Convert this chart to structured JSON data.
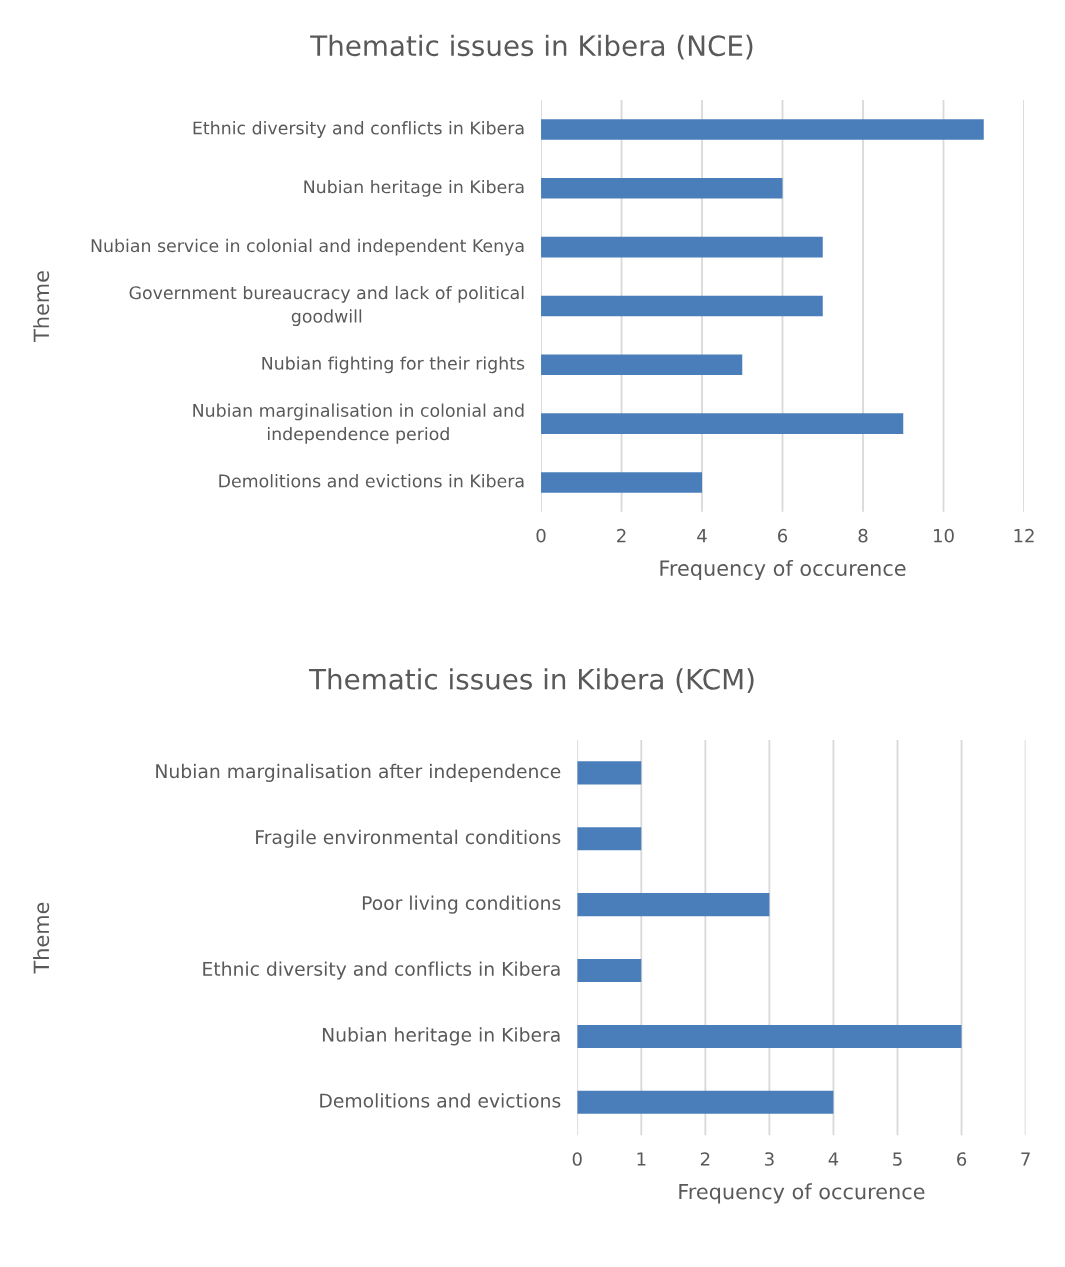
{
  "chart_data": [
    {
      "type": "bar",
      "orientation": "horizontal",
      "title": "Thematic issues in Kibera (NCE)",
      "xlabel": "Frequency of occurence",
      "ylabel": "Theme",
      "categories": [
        "Ethnic diversity and conflicts in Kibera",
        "Nubian heritage in Kibera",
        "Nubian service in colonial and independent Kenya",
        "Government bureaucracy and lack of political goodwill",
        "Nubian fighting for their rights",
        "Nubian marginalisation in colonial and independence period",
        "Demolitions and evictions in Kibera"
      ],
      "values": [
        11,
        6,
        7,
        7,
        5,
        9,
        4
      ],
      "color": "#4a7ebb",
      "xlim": [
        0,
        12
      ],
      "xticks": [
        0,
        2,
        4,
        6,
        8,
        10,
        12
      ],
      "grid": "x",
      "legend": false
    },
    {
      "type": "bar",
      "orientation": "horizontal",
      "title": "Thematic issues in Kibera (KCM)",
      "xlabel": "Frequency of occurence",
      "ylabel": "Theme",
      "categories": [
        "Nubian marginalisation after independence",
        "Fragile environmental conditions",
        "Poor living conditions",
        "Ethnic diversity and conflicts in Kibera",
        "Nubian heritage in Kibera",
        "Demolitions and evictions"
      ],
      "values": [
        1,
        1,
        3,
        1,
        6,
        4
      ],
      "color": "#4a7ebb",
      "xlim": [
        0,
        7
      ],
      "xticks": [
        0,
        1,
        2,
        3,
        4,
        5,
        6,
        7
      ],
      "grid": "x",
      "legend": false
    }
  ]
}
